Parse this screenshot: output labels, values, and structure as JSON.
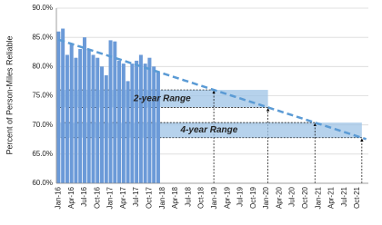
{
  "chart_data": {
    "type": "bar",
    "y_label": "Percent of Person-Miles Reliable",
    "ylim": [
      60,
      90
    ],
    "yticks": [
      {
        "value": 60,
        "label": "60.0%"
      },
      {
        "value": 65,
        "label": "65.0%"
      },
      {
        "value": 70,
        "label": "70.0%"
      },
      {
        "value": 75,
        "label": "75.0%"
      },
      {
        "value": 80,
        "label": "80.0%"
      },
      {
        "value": 85,
        "label": "85.0%"
      },
      {
        "value": 90,
        "label": "90.0%"
      }
    ],
    "categories": [
      "Jan-16",
      null,
      null,
      "Apr-16",
      null,
      null,
      "Jul-16",
      null,
      null,
      "Oct-16",
      null,
      null,
      "Jan-17",
      null,
      null,
      "Apr-17",
      null,
      null,
      "Jul-17",
      null,
      null,
      "Oct-17",
      null,
      null,
      "Jan-18",
      null,
      null,
      "Apr-18",
      null,
      null,
      "Jul-18",
      null,
      null,
      "Oct-18",
      null,
      null,
      "Jan-19",
      null,
      null,
      "Apr-19",
      null,
      null,
      "Jul-19",
      null,
      null,
      "Oct-19",
      null,
      null,
      "Jan-20",
      null,
      null,
      "Apr-20",
      null,
      null,
      "Jul-20",
      null,
      null,
      "Oct-20",
      null,
      null,
      "Jan-21",
      null,
      null,
      "Apr-21",
      null,
      null,
      "Jul-21",
      null,
      null,
      "Oct-21",
      null,
      null
    ],
    "series": [
      {
        "type": "bar",
        "color": "#6b9ad8",
        "values": [
          86.0,
          86.5,
          82.0,
          84.0,
          81.5,
          83.0,
          85.0,
          83.0,
          82.0,
          81.5,
          80.0,
          78.5,
          84.5,
          84.3,
          81.0,
          80.5,
          77.5,
          80.5,
          81.0,
          82.0,
          80.5,
          81.5,
          80.0,
          79.0,
          null,
          null,
          null,
          null,
          null,
          null,
          null,
          null,
          null,
          null,
          null,
          null,
          null,
          null,
          null,
          null,
          null,
          null,
          null,
          null,
          null,
          null,
          null,
          null,
          null,
          null,
          null,
          null,
          null,
          null,
          null,
          null,
          null,
          null,
          null,
          null,
          null,
          null,
          null,
          null,
          null,
          null,
          null,
          null,
          null,
          null,
          null,
          null
        ]
      },
      {
        "type": "line",
        "color": "#5b9bd5",
        "dashed": true,
        "values": [
          84.6,
          84.36,
          84.12,
          83.88,
          83.64,
          83.4,
          83.16,
          82.92,
          82.68,
          82.44,
          82.2,
          81.96,
          81.72,
          81.48,
          81.24,
          81.0,
          80.76,
          80.52,
          80.28,
          80.04,
          79.8,
          79.56,
          79.32,
          79.08,
          78.84,
          78.6,
          78.36,
          78.12,
          77.88,
          77.64,
          77.4,
          77.16,
          76.92,
          76.68,
          76.44,
          76.2,
          75.96,
          75.72,
          75.48,
          75.24,
          75.0,
          74.76,
          74.52,
          74.28,
          74.04,
          73.8,
          73.56,
          73.32,
          73.08,
          72.84,
          72.6,
          72.36,
          72.12,
          71.88,
          71.64,
          71.4,
          71.16,
          70.92,
          70.68,
          70.44,
          70.2,
          69.96,
          69.72,
          69.48,
          69.24,
          69.0,
          68.76,
          68.52,
          68.28,
          68.04,
          67.8,
          67.56
        ]
      }
    ],
    "ranges": [
      {
        "label": "2-year Range",
        "low": 73,
        "high": 76,
        "color": "#9dc3e6"
      },
      {
        "label": "4-year Range",
        "low": 67.8,
        "high": 70.4,
        "color": "#9dc3e6"
      }
    ]
  }
}
